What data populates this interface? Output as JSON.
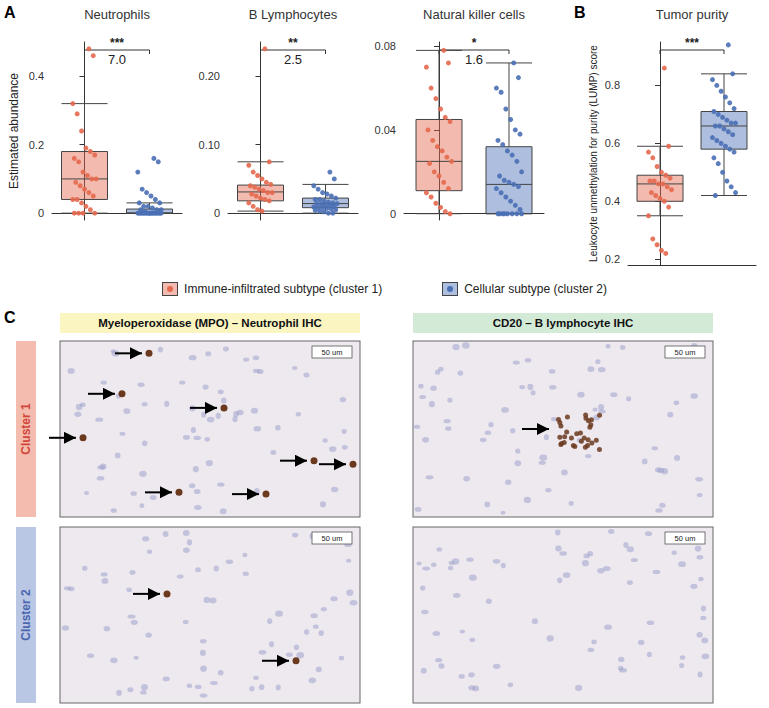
{
  "panel_labels": [
    "A",
    "B",
    "C"
  ],
  "chart_data": [
    {
      "type": "boxplot",
      "title": "Neutrophils",
      "y_label": "Estimated abundance",
      "ylim": [
        -0.02,
        0.5
      ],
      "yticks": [
        0,
        0.2,
        0.4
      ],
      "grid": false,
      "legend": "bottom",
      "annotations": [
        "***",
        "7.0"
      ],
      "series": [
        {
          "name": "Immune-infiltrated subtype (cluster 1)",
          "color": "#e4694e",
          "box": [
            0,
            0.04,
            0.1,
            0.18,
            0.32
          ],
          "values": [
            0.48,
            0.46,
            0.32,
            0.29,
            0.24,
            0.19,
            0.18,
            0.17,
            0.16,
            0.15,
            0.12,
            0.11,
            0.1,
            0.1,
            0.09,
            0.08,
            0.07,
            0.06,
            0.05,
            0.04,
            0.04,
            0.03,
            0.02,
            0.01,
            0,
            0,
            0,
            0
          ]
        },
        {
          "name": "Cellular subtype (cluster 2)",
          "color": "#4a6fb5",
          "box": [
            0,
            0,
            0,
            0.012,
            0.03
          ],
          "values": [
            0.16,
            0.15,
            0.12,
            0.07,
            0.06,
            0.05,
            0.04,
            0.03,
            0.03,
            0.02,
            0.02,
            0.015,
            0.01,
            0.01,
            0.01,
            0.005,
            0,
            0,
            0,
            0,
            0,
            0,
            0,
            0,
            0,
            0,
            0,
            0,
            0,
            0,
            0,
            0,
            0,
            0
          ]
        }
      ]
    },
    {
      "type": "boxplot",
      "title": "B Lymphocytes",
      "ylim": [
        -0.01,
        0.25
      ],
      "yticks": [
        0,
        {
          "value": 0.1,
          "label": "0.10"
        },
        {
          "value": 0.2,
          "label": "0.20"
        }
      ],
      "grid": false,
      "annotations": [
        "**",
        "2.5"
      ],
      "series": [
        {
          "name": "Immune-infiltrated subtype (cluster 1)",
          "color": "#e4694e",
          "box": [
            0.003,
            0.018,
            0.031,
            0.041,
            0.075
          ],
          "values": [
            0.24,
            0.075,
            0.07,
            0.06,
            0.055,
            0.05,
            0.045,
            0.042,
            0.04,
            0.038,
            0.035,
            0.033,
            0.03,
            0.03,
            0.028,
            0.025,
            0.022,
            0.02,
            0.018,
            0.015,
            0.01,
            0.005,
            0.003
          ]
        },
        {
          "name": "Cellular subtype (cluster 2)",
          "color": "#4a6fb5",
          "box": [
            0,
            0.008,
            0.014,
            0.022,
            0.042
          ],
          "values": [
            0.06,
            0.05,
            0.04,
            0.035,
            0.03,
            0.028,
            0.025,
            0.022,
            0.02,
            0.02,
            0.018,
            0.016,
            0.015,
            0.014,
            0.014,
            0.013,
            0.012,
            0.011,
            0.01,
            0.009,
            0.008,
            0.008,
            0.007,
            0.006,
            0.005,
            0.004,
            0.003,
            0.002,
            0,
            0
          ]
        }
      ]
    },
    {
      "type": "boxplot",
      "title": "Natural killer cells",
      "ylim": [
        -0.003,
        0.082
      ],
      "yticks": [
        0,
        0.04,
        0.08
      ],
      "grid": false,
      "annotations": [
        "*",
        "1.6"
      ],
      "series": [
        {
          "name": "Immune-infiltrated subtype (cluster 1)",
          "color": "#e4694e",
          "box": [
            0,
            0.011,
            0.025,
            0.045,
            0.078
          ],
          "values": [
            0.078,
            0.072,
            0.07,
            0.06,
            0.055,
            0.05,
            0.046,
            0.044,
            0.04,
            0.035,
            0.032,
            0.03,
            0.027,
            0.025,
            0.024,
            0.02,
            0.018,
            0.015,
            0.012,
            0.01,
            0.008,
            0.005,
            0.003,
            0.001,
            0
          ]
        },
        {
          "name": "Cellular subtype (cluster 2)",
          "color": "#4a6fb5",
          "box": [
            0,
            0,
            0.014,
            0.032,
            0.072
          ],
          "values": [
            0.072,
            0.065,
            0.06,
            0.058,
            0.05,
            0.045,
            0.04,
            0.038,
            0.035,
            0.033,
            0.03,
            0.028,
            0.025,
            0.02,
            0.018,
            0.016,
            0.015,
            0.014,
            0.013,
            0.012,
            0.01,
            0.008,
            0.006,
            0.004,
            0.002,
            0,
            0,
            0,
            0,
            0,
            0,
            0,
            0
          ]
        }
      ]
    },
    {
      "type": "boxplot",
      "title": "Tumor purity",
      "y_label": "Leukocyte unmethylation for purity (LUMP) score",
      "ylim": [
        0.18,
        0.95
      ],
      "yticks": [
        0.2,
        0.4,
        0.6,
        0.8
      ],
      "grid": false,
      "annotations": [
        "***"
      ],
      "series": [
        {
          "name": "Immune-infiltrated subtype (cluster 1)",
          "color": "#e4694e",
          "box": [
            0.35,
            0.4,
            0.46,
            0.49,
            0.59
          ],
          "values": [
            0.86,
            0.59,
            0.57,
            0.55,
            0.52,
            0.5,
            0.49,
            0.48,
            0.47,
            0.47,
            0.46,
            0.46,
            0.45,
            0.44,
            0.43,
            0.42,
            0.41,
            0.4,
            0.38,
            0.35,
            0.27,
            0.25,
            0.23,
            0.22
          ]
        },
        {
          "name": "Cellular subtype (cluster 2)",
          "color": "#4a6fb5",
          "box": [
            0.42,
            0.58,
            0.66,
            0.71,
            0.84
          ],
          "values": [
            0.94,
            0.84,
            0.82,
            0.8,
            0.78,
            0.76,
            0.74,
            0.72,
            0.71,
            0.7,
            0.69,
            0.68,
            0.67,
            0.67,
            0.66,
            0.66,
            0.65,
            0.64,
            0.63,
            0.62,
            0.61,
            0.6,
            0.59,
            0.58,
            0.57,
            0.55,
            0.53,
            0.5,
            0.47,
            0.45,
            0.43,
            0.42
          ]
        }
      ]
    }
  ],
  "panel_c": {
    "columns": [
      {
        "title": "Myeloperoxidase (MPO) – Neutrophil IHC"
      },
      {
        "title": "CD20 – B lymphocyte IHC"
      }
    ],
    "rows": [
      {
        "label": "Cluster 1"
      },
      {
        "label": "Cluster 2"
      }
    ],
    "scale_bar": "50 um"
  }
}
